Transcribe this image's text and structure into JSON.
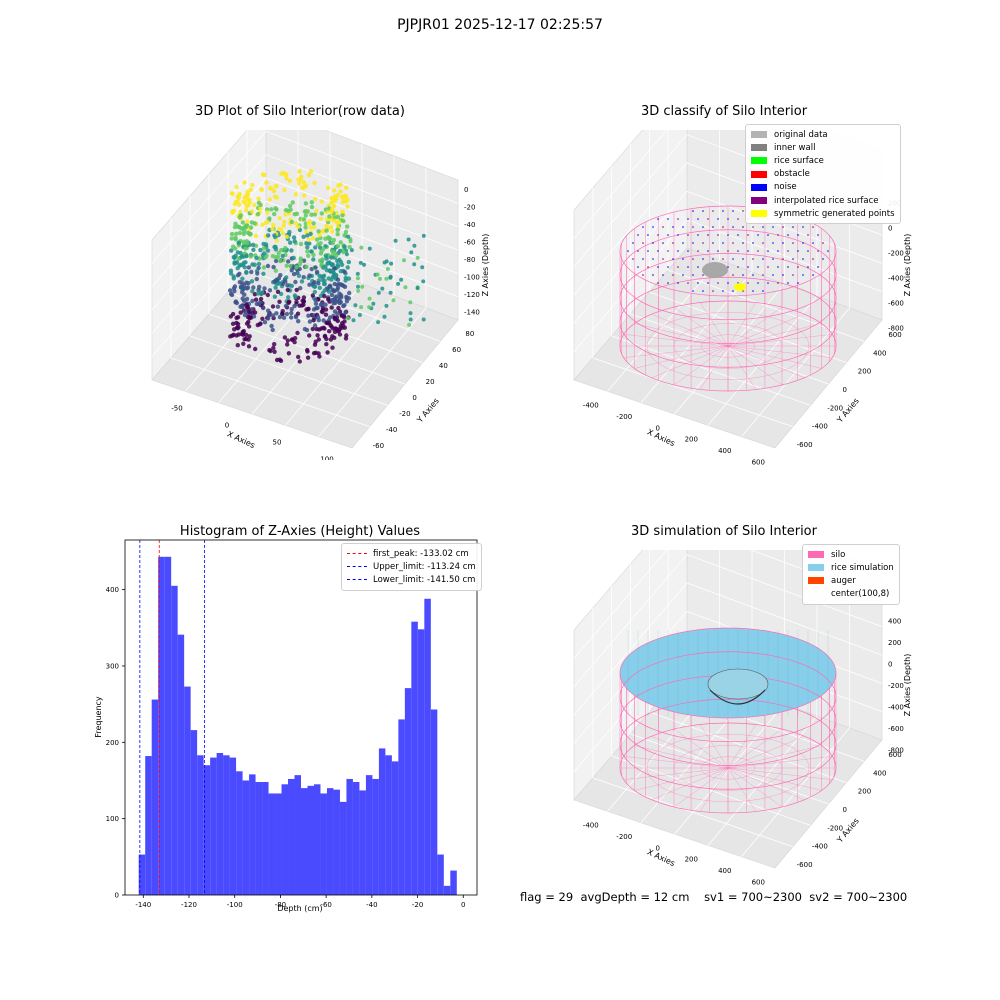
{
  "suptitle": "PJPJR01 2025-12-17 02:25:57",
  "panels": {
    "raw": {
      "title": "3D Plot of Silo Interior(row data)",
      "xlabel": "X Axies",
      "ylabel": "Y Axies",
      "zlabel": "Z Axies (Depth)",
      "xticks": [
        "-50",
        "0",
        "50",
        "100"
      ],
      "yticks": [
        "-60",
        "-40",
        "-20",
        "0",
        "20",
        "40",
        "60",
        "80"
      ],
      "zticks": [
        "0",
        "-20",
        "-40",
        "-60",
        "-80",
        "-100",
        "-120",
        "-140"
      ],
      "colormap": [
        "#440154",
        "#3b528b",
        "#21918c",
        "#5ec962",
        "#fde725"
      ]
    },
    "classify": {
      "title": "3D classify of Silo Interior",
      "xlabel": "X Axies",
      "ylabel": "Y Axies",
      "zlabel": "Z Axies (Depth)",
      "xticks": [
        "-400",
        "-200",
        "0",
        "200",
        "400",
        "600"
      ],
      "yticks": [
        "-600",
        "-400",
        "-200",
        "0",
        "200",
        "400",
        "600"
      ],
      "zticks": [
        "200",
        "0",
        "-200",
        "-400",
        "-600",
        "-800"
      ],
      "legend": [
        {
          "label": "original data",
          "color": "#b3b3b3"
        },
        {
          "label": "inner wall",
          "color": "#808080"
        },
        {
          "label": "rice surface",
          "color": "#00ff00"
        },
        {
          "label": "obstacle",
          "color": "#ff0000"
        },
        {
          "label": "noise",
          "color": "#0000ff"
        },
        {
          "label": "interpolated rice surface",
          "color": "#800080"
        },
        {
          "label": "symmetric generated points",
          "color": "#ffff00"
        }
      ],
      "wall_color": "#ff69b4"
    },
    "simulation": {
      "title": "3D simulation of Silo Interior",
      "xlabel": "X Axies",
      "ylabel": "Y Axies",
      "zlabel": "Z Axies (Depth)",
      "xticks": [
        "-400",
        "-200",
        "0",
        "200",
        "400",
        "600"
      ],
      "yticks": [
        "-600",
        "-400",
        "-200",
        "0",
        "200",
        "400",
        "600"
      ],
      "zticks": [
        "400",
        "200",
        "0",
        "-200",
        "-400",
        "-600",
        "-800"
      ],
      "legend": [
        {
          "label": "silo",
          "color": "#ff69b4"
        },
        {
          "label": "rice simulation",
          "color": "#87ceeb"
        },
        {
          "label": "auger",
          "color": "#ff4500"
        },
        {
          "label": "center(100,8)",
          "color": ""
        }
      ]
    }
  },
  "footer": {
    "flag": "flag = 29",
    "avg_depth": "avgDepth = 12 cm",
    "sv1": "sv1 = 700~2300",
    "sv2": "sv2 = 700~2300"
  },
  "chart_data": [
    {
      "type": "bar",
      "title": "Histogram of Z-Axies (Height) Values",
      "xlabel": "Depth (cm)",
      "ylabel": "Frequency",
      "bar_color": "#4a4aff",
      "bin_start": -142,
      "bin_width": 2.84,
      "values": [
        53,
        182,
        256,
        443,
        443,
        405,
        341,
        273,
        216,
        183,
        170,
        180,
        186,
        183,
        180,
        162,
        150,
        158,
        148,
        148,
        133,
        133,
        145,
        152,
        157,
        140,
        143,
        145,
        133,
        140,
        138,
        122,
        152,
        148,
        137,
        157,
        152,
        192,
        183,
        175,
        230,
        271,
        358,
        348,
        388,
        243,
        53,
        12,
        32
      ],
      "xlim": [
        -148,
        6
      ],
      "ylim": [
        0,
        465
      ],
      "xticks": [
        -140,
        -120,
        -100,
        -80,
        -60,
        -40,
        -20,
        0
      ],
      "yticks": [
        0,
        100,
        200,
        300,
        400
      ],
      "lines": [
        {
          "label": "first_peak: -133.02 cm",
          "x": -133.02,
          "color": "#ff0000"
        },
        {
          "label": "Upper_limit: -113.24 cm",
          "x": -113.24,
          "color": "#0000ff"
        },
        {
          "label": "Lower_limit: -141.50 cm",
          "x": -141.5,
          "color": "#0000ff"
        }
      ],
      "legend_position": "upper right"
    }
  ]
}
